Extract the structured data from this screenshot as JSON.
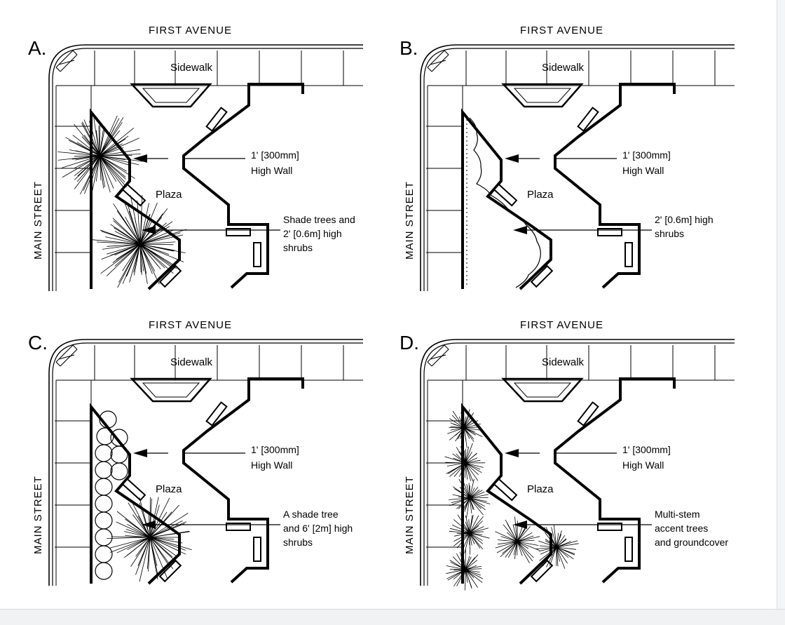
{
  "panels": [
    {
      "letter": "A.",
      "street_top": "FIRST AVENUE",
      "street_side": "MAIN STREET",
      "sidewalk": "Sidewalk",
      "plaza": "Plaza",
      "wall_label": [
        "1' [300mm]",
        "High Wall"
      ],
      "planting_label": [
        "Shade trees and",
        "2' [0.6m] high",
        "shrubs"
      ],
      "planting_type": "shade-trees"
    },
    {
      "letter": "B.",
      "street_top": "FIRST AVENUE",
      "street_side": "MAIN STREET",
      "sidewalk": "Sidewalk",
      "plaza": "Plaza",
      "wall_label": [
        "1' [300mm]",
        "High Wall"
      ],
      "planting_label": [
        "2' [0.6m] high",
        "shrubs"
      ],
      "planting_type": "low-shrubs"
    },
    {
      "letter": "C.",
      "street_top": "FIRST AVENUE",
      "street_side": "MAIN STREET",
      "sidewalk": "Sidewalk",
      "plaza": "Plaza",
      "wall_label": [
        "1' [300mm]",
        "High Wall"
      ],
      "planting_label": [
        "A shade tree",
        "and 6' [2m] high",
        "shrubs"
      ],
      "planting_type": "tall-shrubs"
    },
    {
      "letter": "D.",
      "street_top": "FIRST AVENUE",
      "street_side": "MAIN STREET",
      "sidewalk": "Sidewalk",
      "plaza": "Plaza",
      "wall_label": [
        "1' [300mm]",
        "High Wall"
      ],
      "planting_label": [
        "Multi-stem",
        "accent trees",
        "and groundcover"
      ],
      "planting_type": "accent-trees"
    }
  ]
}
